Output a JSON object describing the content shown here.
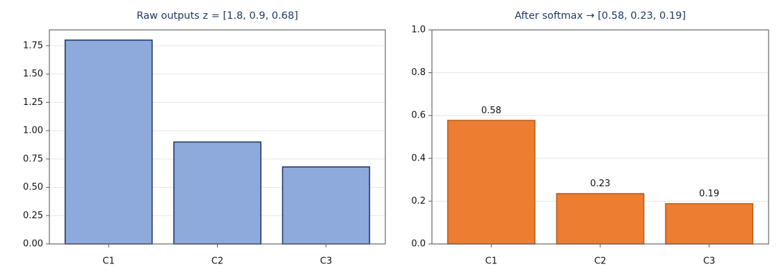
{
  "chart_data": [
    {
      "type": "bar",
      "title": "Raw outputs  z = [1.8, 0.9, 0.68]",
      "categories": [
        "C1",
        "C2",
        "C3"
      ],
      "values": [
        1.8,
        0.9,
        0.68
      ],
      "color": "#8eaadc",
      "edgecolor": "#1f3864",
      "ylim": [
        0,
        1.89
      ],
      "yticks": [
        {
          "value": 0,
          "label": "0.00"
        },
        {
          "value": 0.25,
          "label": "0.25"
        },
        {
          "value": 0.5,
          "label": "0.50"
        },
        {
          "value": 0.75,
          "label": "0.75"
        },
        {
          "value": 1,
          "label": "1.00"
        },
        {
          "value": 1.25,
          "label": "1.25"
        },
        {
          "value": 1.5,
          "label": "1.50"
        },
        {
          "value": 1.75,
          "label": "1.75"
        }
      ],
      "grid": true
    },
    {
      "type": "bar",
      "title": "After softmax  →  [0.58, 0.23, 0.19]",
      "categories": [
        "C1",
        "C2",
        "C3"
      ],
      "values": [
        0.577,
        0.235,
        0.188
      ],
      "value_labels": [
        "0.58",
        "0.23",
        "0.19"
      ],
      "color": "#ed7d31",
      "edgecolor": "#b85c1c",
      "ylim": [
        0,
        1
      ],
      "yticks": [
        {
          "value": 0,
          "label": "0.0"
        },
        {
          "value": 0.2,
          "label": "0.2"
        },
        {
          "value": 0.4,
          "label": "0.4"
        },
        {
          "value": 0.6,
          "label": "0.6"
        },
        {
          "value": 0.8,
          "label": "0.8"
        },
        {
          "value": 1,
          "label": "1.0"
        }
      ],
      "grid": true
    }
  ]
}
